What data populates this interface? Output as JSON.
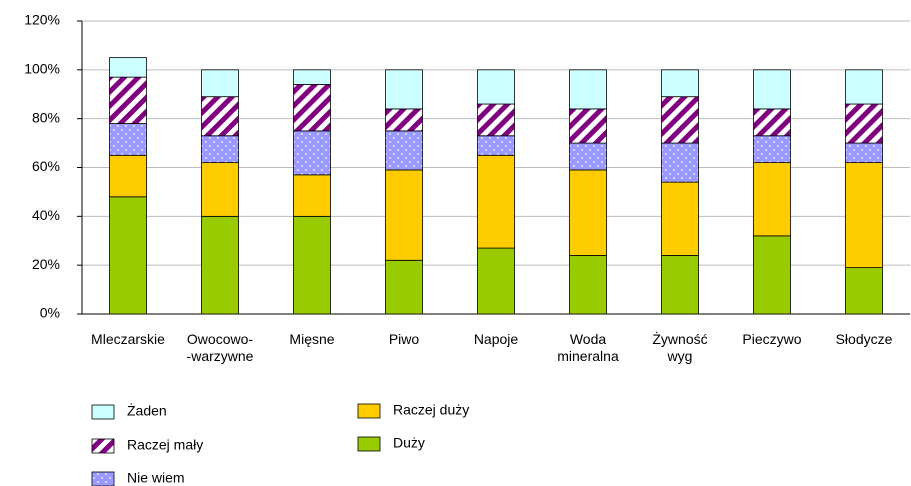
{
  "chart_data": {
    "type": "stacked_bar",
    "categories": [
      "Mleczarskie",
      "Owocowo-\n-warzywne",
      "Mięsne",
      "Piwo",
      "Napoje",
      "Woda\nmineralna",
      "Żywność\nwyg",
      "Pieczywo",
      "Słodycze"
    ],
    "series": [
      {
        "name": "Duży",
        "color": "#99cc00",
        "values": [
          48,
          40,
          40,
          22,
          27,
          24,
          24,
          32,
          19
        ]
      },
      {
        "name": "Raczej duży",
        "color": "#ffcc00",
        "values": [
          17,
          22,
          17,
          37,
          38,
          35,
          30,
          30,
          43
        ]
      },
      {
        "name": "Nie wiem",
        "color": "#9999ff",
        "values": [
          13,
          11,
          18,
          16,
          8,
          11,
          16,
          11,
          8
        ]
      },
      {
        "name": "Raczej mały",
        "color": "#800080",
        "values": [
          19,
          16,
          19,
          9,
          13,
          14,
          19,
          11,
          16
        ]
      },
      {
        "name": "Żaden",
        "color": "#ccffff",
        "values": [
          8,
          11,
          6,
          16,
          14,
          16,
          11,
          16,
          14
        ]
      }
    ],
    "ylim": [
      0,
      120
    ],
    "yticks": [
      {
        "value": 0,
        "label": "0%"
      },
      {
        "value": 20,
        "label": "20%"
      },
      {
        "value": 40,
        "label": "40%"
      },
      {
        "value": 60,
        "label": "60%"
      },
      {
        "value": 80,
        "label": "80%"
      },
      {
        "value": 100,
        "label": "100%"
      },
      {
        "value": 120,
        "label": "120%"
      }
    ],
    "grid": true
  }
}
